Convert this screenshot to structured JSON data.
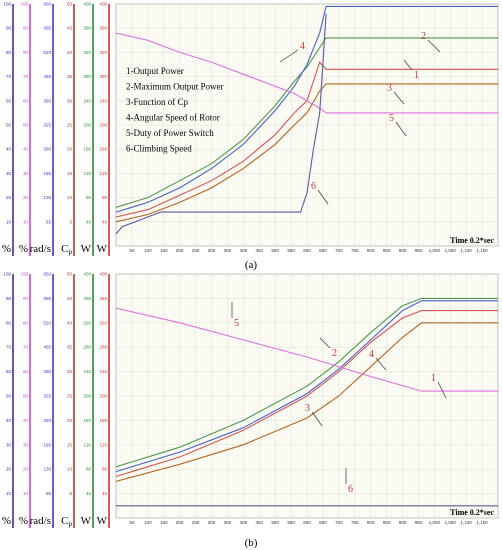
{
  "chart_data": [
    {
      "panel": "a",
      "caption": "(a)",
      "type": "line",
      "time_label": "Time  0.2*sec",
      "x_ticks": [
        "50",
        "100",
        "150",
        "200",
        "250",
        "300",
        "350",
        "400",
        "450",
        "500",
        "550",
        "600",
        "650",
        "700",
        "750",
        "800",
        "850",
        "900",
        "950",
        "1,000",
        "1,050",
        "1,100",
        "1,150"
      ],
      "xlim": [
        0,
        1200
      ],
      "axes": [
        {
          "unit": "%",
          "color": "#3333aa",
          "ticks": [
            "10",
            "20",
            "30",
            "40",
            "50",
            "60",
            "70",
            "80",
            "90",
            "100"
          ]
        },
        {
          "unit": "%",
          "color": "#cc44cc",
          "ticks": [
            "10",
            "20",
            "30",
            "40",
            "50",
            "60",
            "70",
            "80",
            "90",
            "100"
          ]
        },
        {
          "unit": "rad/s",
          "color": "#3a3acc",
          "ticks": [
            "65",
            "130",
            "195",
            "260",
            "325",
            "390",
            "455",
            "520",
            "585",
            "650"
          ]
        },
        {
          "unit": "C",
          "sub": "p",
          "color": "#b03a2e",
          "ticks": [
            "5",
            "10",
            "15",
            "20",
            "25",
            "30",
            "35",
            "40",
            "45",
            "50"
          ]
        },
        {
          "unit": "W",
          "color": "#2e8b2e",
          "ticks": [
            "40",
            "80",
            "120",
            "160",
            "200",
            "240",
            "280",
            "320",
            "360",
            "400"
          ]
        },
        {
          "unit": "W",
          "color": "#cc3333",
          "ticks": [
            "40",
            "80",
            "120",
            "160",
            "200",
            "240",
            "280",
            "320",
            "360",
            "400"
          ]
        }
      ],
      "legend": [
        "1-Output Power",
        "2-Maximum Output Power",
        "3-Function of Cp",
        "4-Angular Speed of Rotor",
        "5-Duty of Power Switch",
        "6-Climbing Speed"
      ],
      "callouts": [
        "1",
        "2",
        "3",
        "4",
        "5",
        "6"
      ],
      "series": [
        {
          "name": "1-Output Power",
          "color": "#d9534f",
          "x": [
            0,
            100,
            200,
            300,
            400,
            500,
            560,
            600,
            640,
            660,
            700,
            1200
          ],
          "y": [
            12,
            15,
            21,
            27,
            35,
            46,
            55,
            60,
            76,
            73,
            73,
            73
          ]
        },
        {
          "name": "2-Maximum Output Power",
          "color": "#4a9a4a",
          "x": [
            0,
            100,
            200,
            300,
            400,
            500,
            560,
            600,
            640,
            660,
            700,
            1200
          ],
          "y": [
            16,
            20,
            27,
            34,
            44,
            58,
            68,
            74,
            82,
            86,
            86,
            86
          ]
        },
        {
          "name": "3-Function of Cp",
          "color": "#b5651d",
          "x": [
            0,
            100,
            200,
            300,
            400,
            500,
            560,
            600,
            640,
            660,
            700,
            1200
          ],
          "y": [
            10,
            13,
            18,
            24,
            32,
            42,
            50,
            55,
            64,
            67,
            67,
            67
          ]
        },
        {
          "name": "4-Angular Speed of Rotor",
          "color": "#4a5fd0",
          "x": [
            0,
            100,
            200,
            300,
            400,
            500,
            560,
            600,
            640,
            660,
            700,
            1200
          ],
          "y": [
            14,
            18,
            24,
            32,
            42,
            56,
            66,
            75,
            88,
            99,
            99,
            99
          ]
        },
        {
          "name": "5-Duty of Power Switch",
          "color": "#e070e0",
          "x": [
            0,
            100,
            200,
            300,
            400,
            500,
            560,
            600,
            640,
            660,
            700,
            1200
          ],
          "y": [
            88,
            85,
            80,
            76,
            71,
            66,
            63,
            60,
            57,
            55,
            55,
            55
          ]
        },
        {
          "name": "6-Climbing Speed",
          "color": "#5a5aa0",
          "x": [
            0,
            20,
            60,
            100,
            140,
            200,
            300,
            400,
            500,
            560,
            580,
            600,
            620,
            640,
            660
          ],
          "y": [
            5,
            8,
            10,
            12,
            14,
            14,
            14,
            14,
            14,
            14,
            14,
            22,
            40,
            55,
            96
          ]
        }
      ]
    },
    {
      "panel": "b",
      "caption": "(b)",
      "type": "line",
      "time_label": "Time  0.2*sec",
      "x_ticks": [
        "50",
        "100",
        "150",
        "200",
        "250",
        "300",
        "350",
        "400",
        "450",
        "500",
        "550",
        "600",
        "650",
        "700",
        "750",
        "800",
        "850",
        "900",
        "950",
        "1,000",
        "1,050",
        "1,100",
        "1,150"
      ],
      "xlim": [
        0,
        1200
      ],
      "axes": [
        {
          "unit": "%",
          "color": "#3333aa",
          "ticks": [
            "10",
            "20",
            "30",
            "40",
            "50",
            "60",
            "70",
            "80",
            "90",
            "100"
          ]
        },
        {
          "unit": "%",
          "color": "#cc44cc",
          "ticks": [
            "10",
            "20",
            "30",
            "40",
            "50",
            "60",
            "70",
            "80",
            "90",
            "100"
          ]
        },
        {
          "unit": "rad/s",
          "color": "#3a3acc",
          "ticks": [
            "65",
            "130",
            "195",
            "260",
            "325",
            "390",
            "455",
            "520",
            "585",
            "650"
          ]
        },
        {
          "unit": "C",
          "sub": "p",
          "color": "#b03a2e",
          "ticks": [
            "5",
            "10",
            "15",
            "20",
            "25",
            "30",
            "35",
            "40",
            "45",
            "50"
          ]
        },
        {
          "unit": "W",
          "color": "#2e8b2e",
          "ticks": [
            "40",
            "80",
            "120",
            "160",
            "200",
            "240",
            "280",
            "320",
            "360",
            "400"
          ]
        },
        {
          "unit": "W",
          "color": "#cc3333",
          "ticks": [
            "40",
            "80",
            "120",
            "160",
            "200",
            "240",
            "280",
            "320",
            "360",
            "400"
          ]
        }
      ],
      "callouts": [
        "1",
        "2",
        "3",
        "4",
        "5",
        "6"
      ],
      "series": [
        {
          "name": "1-Output Power",
          "color": "#d9534f",
          "x": [
            0,
            200,
            400,
            600,
            700,
            800,
            900,
            960,
            1200
          ],
          "y": [
            17,
            25,
            36,
            50,
            60,
            72,
            82,
            85,
            85
          ]
        },
        {
          "name": "2-Maximum Output Power",
          "color": "#4a9a4a",
          "x": [
            0,
            200,
            400,
            600,
            700,
            800,
            900,
            960,
            1200
          ],
          "y": [
            21,
            29,
            40,
            54,
            64,
            76,
            87,
            90,
            90
          ]
        },
        {
          "name": "3-Function of Cp",
          "color": "#b5651d",
          "x": [
            0,
            200,
            400,
            600,
            700,
            800,
            900,
            960,
            1200
          ],
          "y": [
            15,
            22,
            30,
            41,
            50,
            62,
            74,
            80,
            80
          ]
        },
        {
          "name": "4-Angular Speed of Rotor",
          "color": "#4a5fd0",
          "x": [
            0,
            200,
            400,
            600,
            700,
            800,
            900,
            960,
            1200
          ],
          "y": [
            19,
            27,
            37,
            51,
            61,
            73,
            85,
            89,
            89
          ]
        },
        {
          "name": "5-Duty of Power Switch",
          "color": "#e070e0",
          "x": [
            0,
            200,
            400,
            600,
            800,
            960,
            1200
          ],
          "y": [
            86,
            80,
            73,
            66,
            58,
            52,
            52
          ]
        },
        {
          "name": "6-Climbing Speed",
          "color": "#5a5aa0",
          "x": [
            0,
            1200
          ],
          "y": [
            5,
            5
          ]
        }
      ]
    }
  ]
}
